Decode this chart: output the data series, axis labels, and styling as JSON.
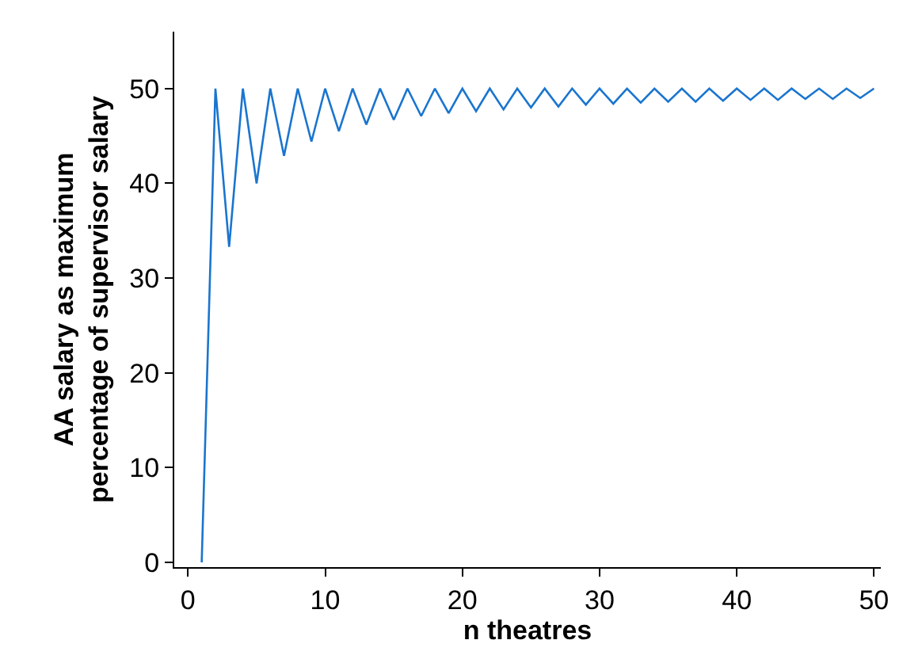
{
  "chart_data": {
    "type": "line",
    "xlabel": "n theatres",
    "ylabel": "AA salary as maximum\npercentage of supervisor salary",
    "x": [
      1,
      2,
      3,
      4,
      5,
      6,
      7,
      8,
      9,
      10,
      11,
      12,
      13,
      14,
      15,
      16,
      17,
      18,
      19,
      20,
      21,
      22,
      23,
      24,
      25,
      26,
      27,
      28,
      29,
      30,
      31,
      32,
      33,
      34,
      35,
      36,
      37,
      38,
      39,
      40,
      41,
      42,
      43,
      44,
      45,
      46,
      47,
      48,
      49,
      50
    ],
    "series": [
      {
        "color": "#1a75cf",
        "values": [
          0,
          50,
          33.3,
          50,
          40,
          50,
          42.9,
          50,
          44.4,
          50,
          45.5,
          50,
          46.2,
          50,
          46.7,
          50,
          47.1,
          50,
          47.4,
          50,
          47.6,
          50,
          47.8,
          50,
          48,
          50,
          48.1,
          50,
          48.3,
          50,
          48.4,
          50,
          48.5,
          50,
          48.6,
          50,
          48.6,
          50,
          48.7,
          50,
          48.8,
          50,
          48.8,
          50,
          48.9,
          50,
          48.9,
          50,
          49,
          50
        ]
      }
    ],
    "xlim": [
      -1,
      50.5
    ],
    "ylim": [
      -0.5,
      56
    ],
    "xticks": [
      0,
      10,
      20,
      30,
      40,
      50
    ],
    "yticks": [
      0,
      10,
      20,
      30,
      40,
      50
    ],
    "grid": false,
    "legend": false,
    "marker": "none",
    "line_style": "solid"
  }
}
